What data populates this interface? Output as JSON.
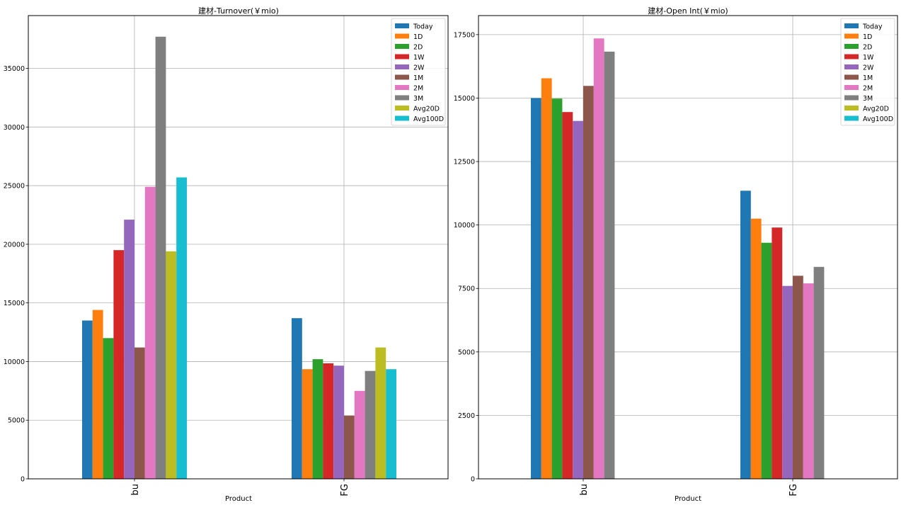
{
  "chart_data": [
    {
      "type": "bar",
      "title": "建材-Turnover(￥mio)",
      "xlabel": "Product",
      "ylabel": "",
      "categories": [
        "bu",
        "FG"
      ],
      "ylim": [
        0,
        39500
      ],
      "yticks": [
        0,
        5000,
        10000,
        15000,
        20000,
        25000,
        30000,
        35000
      ],
      "grid": true,
      "legend_position": "top-right",
      "series": [
        {
          "name": "Today",
          "color": "#1f77b4",
          "values": [
            13500,
            13700
          ]
        },
        {
          "name": "1D",
          "color": "#ff7f0e",
          "values": [
            14400,
            9350
          ]
        },
        {
          "name": "2D",
          "color": "#2ca02c",
          "values": [
            12000,
            10200
          ]
        },
        {
          "name": "1W",
          "color": "#d62728",
          "values": [
            19500,
            9850
          ]
        },
        {
          "name": "2W",
          "color": "#9467bd",
          "values": [
            22100,
            9650
          ]
        },
        {
          "name": "1M",
          "color": "#8c564b",
          "values": [
            11200,
            5400
          ]
        },
        {
          "name": "2M",
          "color": "#e377c2",
          "values": [
            24900,
            7500
          ]
        },
        {
          "name": "3M",
          "color": "#7f7f7f",
          "values": [
            37700,
            9200
          ]
        },
        {
          "name": "Avg20D",
          "color": "#bcbd22",
          "values": [
            19400,
            11200
          ]
        },
        {
          "name": "Avg100D",
          "color": "#17becf",
          "values": [
            25700,
            9350
          ]
        }
      ]
    },
    {
      "type": "bar",
      "title": "建材-Open Int(￥mio)",
      "xlabel": "Product",
      "ylabel": "",
      "categories": [
        "bu",
        "FG"
      ],
      "ylim": [
        0,
        18250
      ],
      "yticks": [
        0,
        2500,
        5000,
        7500,
        10000,
        12500,
        15000,
        17500
      ],
      "grid": true,
      "legend_position": "top-right",
      "series": [
        {
          "name": "Today",
          "color": "#1f77b4",
          "values": [
            15000,
            11350
          ]
        },
        {
          "name": "1D",
          "color": "#ff7f0e",
          "values": [
            15780,
            10250
          ]
        },
        {
          "name": "2D",
          "color": "#2ca02c",
          "values": [
            14980,
            9300
          ]
        },
        {
          "name": "1W",
          "color": "#d62728",
          "values": [
            14450,
            9900
          ]
        },
        {
          "name": "2W",
          "color": "#9467bd",
          "values": [
            14100,
            7600
          ]
        },
        {
          "name": "1M",
          "color": "#8c564b",
          "values": [
            15480,
            8000
          ]
        },
        {
          "name": "2M",
          "color": "#e377c2",
          "values": [
            17350,
            7700
          ]
        },
        {
          "name": "3M",
          "color": "#7f7f7f",
          "values": [
            16830,
            8350
          ]
        },
        {
          "name": "Avg20D",
          "color": "#bcbd22",
          "values": [
            null,
            null
          ]
        },
        {
          "name": "Avg100D",
          "color": "#17becf",
          "values": [
            null,
            null
          ]
        }
      ]
    }
  ]
}
